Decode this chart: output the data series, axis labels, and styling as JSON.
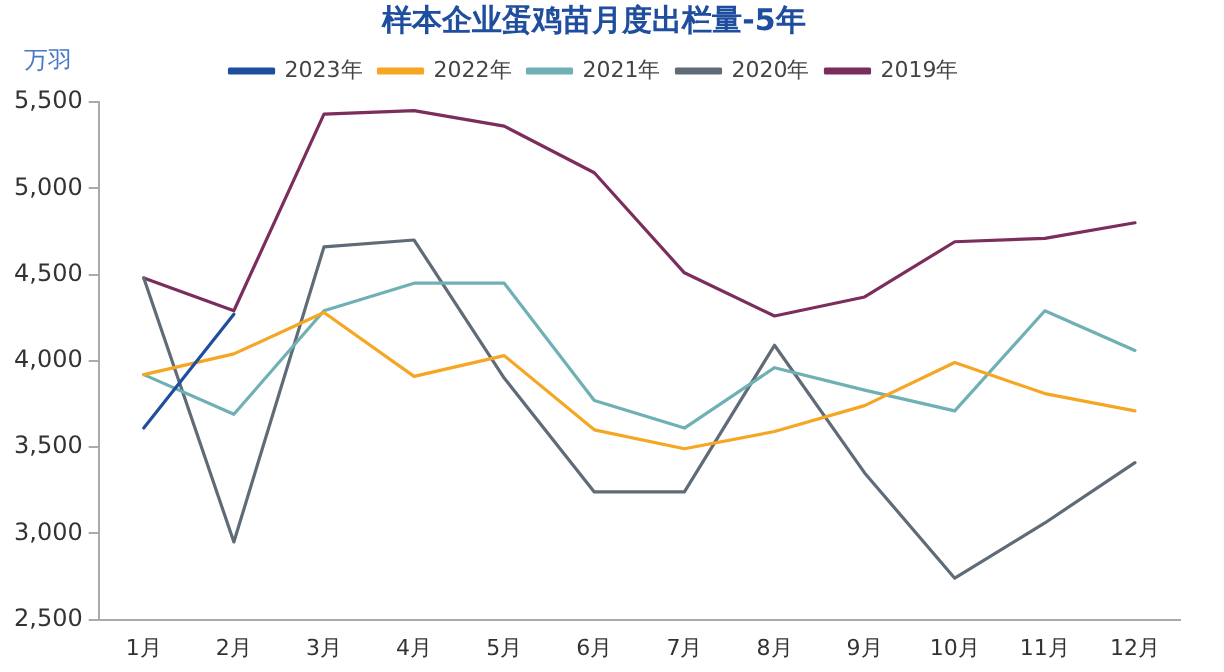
{
  "chart_data": {
    "type": "line",
    "title": "样本企业蛋鸡苗月度出栏量-5年",
    "ylabel": "万羽",
    "categories": [
      "1月",
      "2月",
      "3月",
      "4月",
      "5月",
      "6月",
      "7月",
      "8月",
      "9月",
      "10月",
      "11月",
      "12月"
    ],
    "series": [
      {
        "name": "2023年",
        "color": "#1f4e9e",
        "values": [
          3610,
          4270,
          null,
          null,
          null,
          null,
          null,
          null,
          null,
          null,
          null,
          null
        ]
      },
      {
        "name": "2022年",
        "color": "#f5a623",
        "values": [
          3920,
          4040,
          4280,
          3910,
          4030,
          3600,
          3490,
          3590,
          3740,
          3990,
          3810,
          3710
        ]
      },
      {
        "name": "2021年",
        "color": "#6fb0b5",
        "values": [
          3920,
          3690,
          4290,
          4450,
          4450,
          3770,
          3610,
          3960,
          3830,
          3710,
          4290,
          4060
        ]
      },
      {
        "name": "2020年",
        "color": "#5f6b76",
        "values": [
          4480,
          2950,
          4660,
          4700,
          3900,
          3240,
          3240,
          4090,
          3350,
          2740,
          3060,
          3410
        ]
      },
      {
        "name": "2019年",
        "color": "#7b2d5c",
        "values": [
          4480,
          4290,
          5430,
          5450,
          5360,
          5090,
          4510,
          4260,
          4370,
          4690,
          4710,
          4800
        ]
      }
    ],
    "ylim": [
      2500,
      5500
    ],
    "yticks": [
      {
        "value": 2500,
        "label": "2,500"
      },
      {
        "value": 3000,
        "label": "3,000"
      },
      {
        "value": 3500,
        "label": "3,500"
      },
      {
        "value": 4000,
        "label": "4,000"
      },
      {
        "value": 4500,
        "label": "4,500"
      },
      {
        "value": 5000,
        "label": "5,000"
      },
      {
        "value": 5500,
        "label": "5,500"
      }
    ],
    "grid": false,
    "legend": "top",
    "marker": "none",
    "line_style": "solid"
  }
}
